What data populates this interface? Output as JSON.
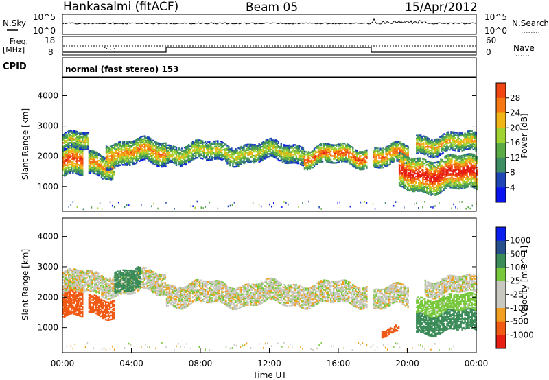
{
  "header": {
    "station": "Hankasalmi (fitACF)",
    "beam": "Beam 05",
    "date": "15/Apr/2012"
  },
  "noise_panel": {
    "left_label": "N.Sky",
    "right_label": "N.Search",
    "ticks_left": [
      "10^5",
      "10^0"
    ],
    "ticks_right": [
      "10^5",
      "10^0"
    ]
  },
  "freq_panel": {
    "left_label_1": "Freq.",
    "left_label_2": "[MHz]",
    "ticks_left": [
      "18",
      "8"
    ],
    "right_label": "Nave",
    "ticks_right": [
      "60",
      "0"
    ]
  },
  "cpid": {
    "label": "CPID",
    "mode": "normal (fast stereo) 153"
  },
  "colors": {
    "power": [
      "#0a14f0",
      "#1e46b4",
      "#3c8c64",
      "#5aaa46",
      "#a0d232",
      "#f0b414",
      "#f57814",
      "#f04614",
      "#e61e14"
    ],
    "velocity": [
      "#e61e14",
      "#f05a14",
      "#f0a01e",
      "#c8c8c0",
      "#c8c8c0",
      "#78c83c",
      "#3c8c5a",
      "#28508c",
      "#0a1ef0"
    ]
  },
  "chart_data": [
    {
      "type": "heatmap",
      "title": "",
      "xlabel": "",
      "ylabel": "Slant Range [km]",
      "colorbar_label": "Power [dB]",
      "colorbar_ticks": [
        "28",
        "24",
        "20",
        "16",
        "12",
        "8",
        "4"
      ],
      "colorbar_range": [
        0,
        30
      ],
      "xlim": [
        "00:00",
        "00:00"
      ],
      "ylim": [
        180,
        4600
      ],
      "ytick_labels": [
        "4000",
        "3000",
        "2000",
        "1000"
      ],
      "bands": [
        {
          "t_start": 0,
          "t_end": 1.2,
          "r_low": 1300,
          "r_high": 2300,
          "peak": 26
        },
        {
          "t_start": 0,
          "t_end": 1.5,
          "r_low": 2150,
          "r_high": 2700,
          "peak": 18
        },
        {
          "t_start": 1.5,
          "t_end": 3.0,
          "r_low": 1350,
          "r_high": 2100,
          "peak": 22
        },
        {
          "t_start": 2.5,
          "t_end": 6.0,
          "r_low": 1700,
          "r_high": 2500,
          "peak": 22
        },
        {
          "t_start": 6.0,
          "t_end": 14.0,
          "r_low": 1800,
          "r_high": 2400,
          "peak": 18
        },
        {
          "t_start": 14.0,
          "t_end": 17.6,
          "r_low": 1700,
          "r_high": 2300,
          "peak": 26
        },
        {
          "t_start": 18.0,
          "t_end": 20.0,
          "r_low": 1650,
          "r_high": 2300,
          "peak": 24
        },
        {
          "t_start": 19.5,
          "t_end": 24.0,
          "r_low": 850,
          "r_high": 1950,
          "peak": 30
        },
        {
          "t_start": 20.5,
          "t_end": 24.0,
          "r_low": 2100,
          "r_high": 2700,
          "peak": 20
        }
      ]
    },
    {
      "type": "heatmap",
      "title": "",
      "xlabel": "Time UT",
      "ylabel": "Slant Range [km]",
      "colorbar_label": "Velocity [m s^-1]",
      "colorbar_ticks": [
        "1000",
        "500",
        "100",
        "25",
        "-25",
        "-100",
        "-500",
        "-1000"
      ],
      "colorbar_range": [
        -1000,
        1000
      ],
      "xlim": [
        "00:00",
        "00:00"
      ],
      "ylim": [
        180,
        4600
      ],
      "xtick_labels": [
        "00:00",
        "04:00",
        "08:00",
        "12:00",
        "16:00",
        "20:00",
        "00:00"
      ],
      "ytick_labels": [
        "4000",
        "3000",
        "2000",
        "1000"
      ],
      "bands": [
        {
          "t_start": 0,
          "t_end": 1.2,
          "r_low": 1300,
          "r_high": 2300,
          "velocity": -300
        },
        {
          "t_start": 0,
          "t_end": 6.0,
          "r_low": 2100,
          "r_high": 2800,
          "velocity": 0
        },
        {
          "t_start": 1.5,
          "t_end": 3.0,
          "r_low": 1400,
          "r_high": 2000,
          "velocity": -250
        },
        {
          "t_start": 3.0,
          "t_end": 4.5,
          "r_low": 2200,
          "r_high": 2900,
          "velocity": 150
        },
        {
          "t_start": 6.0,
          "t_end": 17.6,
          "r_low": 1750,
          "r_high": 2450,
          "velocity": 0
        },
        {
          "t_start": 18.0,
          "t_end": 20.0,
          "r_low": 1650,
          "r_high": 2300,
          "velocity": 0
        },
        {
          "t_start": 18.5,
          "t_end": 19.5,
          "r_low": 700,
          "r_high": 900,
          "velocity": -300
        },
        {
          "t_start": 20.5,
          "t_end": 24.0,
          "r_low": 850,
          "r_high": 1500,
          "velocity": 150
        },
        {
          "t_start": 20.5,
          "t_end": 24.0,
          "r_low": 1500,
          "r_high": 2000,
          "velocity": 60
        },
        {
          "t_start": 21.0,
          "t_end": 24.0,
          "r_low": 2100,
          "r_high": 2600,
          "velocity": 0
        }
      ]
    }
  ]
}
